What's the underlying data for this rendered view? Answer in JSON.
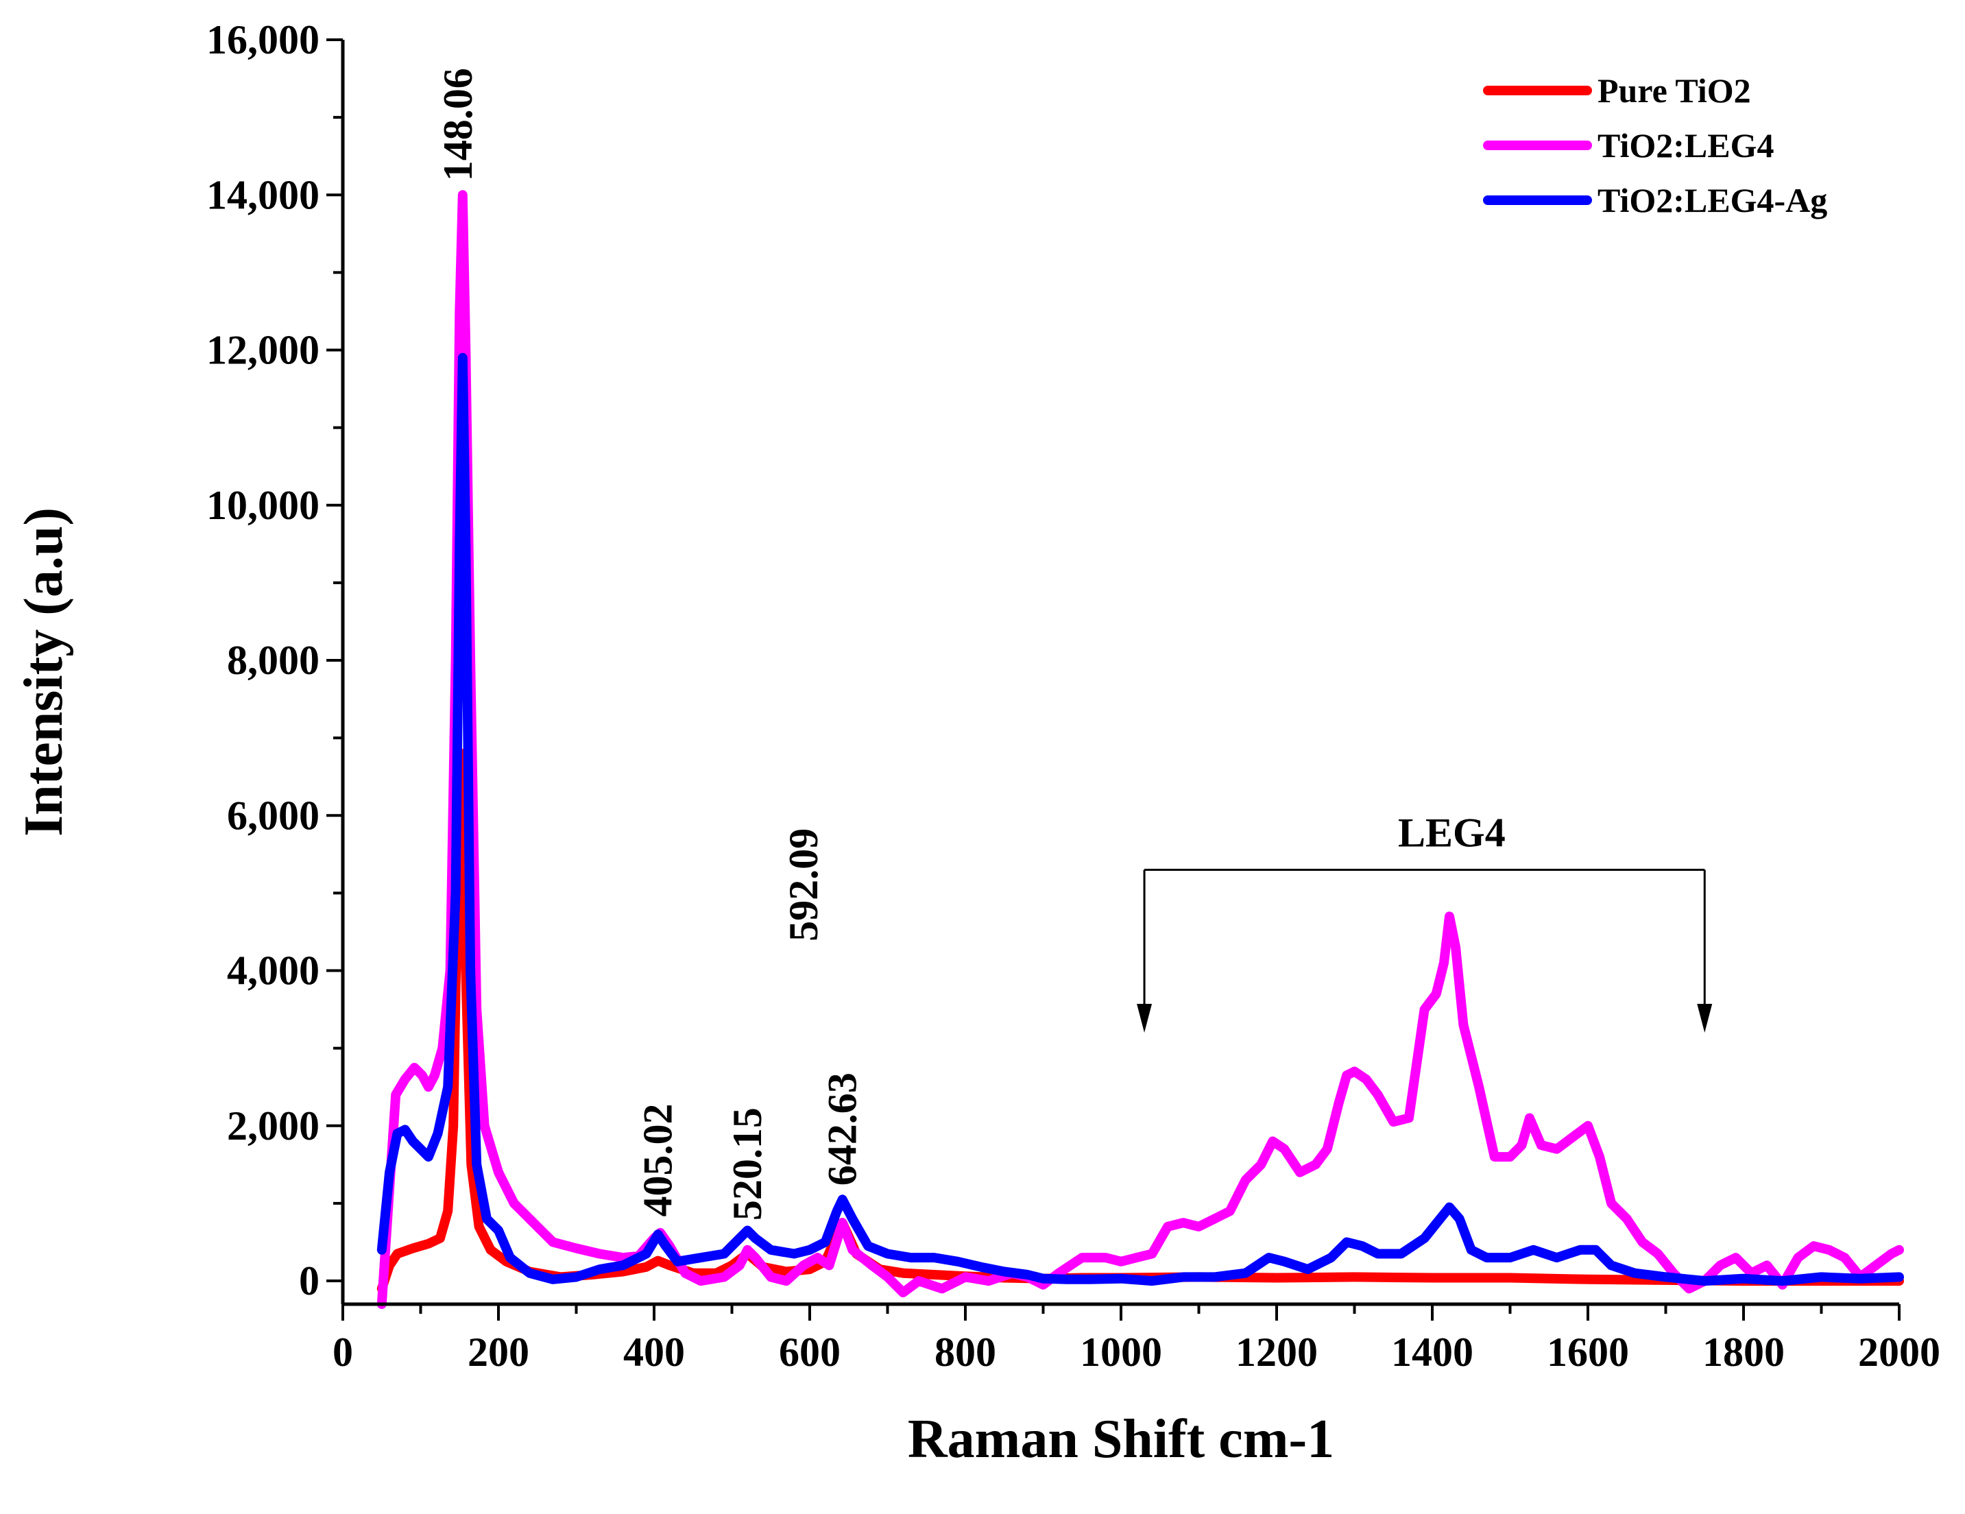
{
  "chart_data": {
    "type": "line",
    "title": "",
    "xlabel": "Raman Shift cm-1",
    "ylabel": "Intensity (a.u)",
    "xlim": [
      0,
      2000
    ],
    "ylim": [
      -300,
      16000
    ],
    "xticks": [
      0,
      200,
      400,
      600,
      800,
      1000,
      1200,
      1400,
      1600,
      1800,
      2000
    ],
    "yticks": [
      0,
      2000,
      4000,
      6000,
      8000,
      10000,
      12000,
      14000,
      16000
    ],
    "ytick_labels": [
      "0",
      "2,000",
      "4,000",
      "6,000",
      "8,000",
      "10,000",
      "12,000",
      "14,000",
      "16,000"
    ],
    "grid": false,
    "legend_position": "top-right",
    "series": [
      {
        "name": "Pure TiO2",
        "color": "#ff0000",
        "points": [
          [
            50,
            -100
          ],
          [
            60,
            200
          ],
          [
            70,
            350
          ],
          [
            90,
            420
          ],
          [
            110,
            480
          ],
          [
            125,
            550
          ],
          [
            135,
            900
          ],
          [
            142,
            2000
          ],
          [
            148,
            5500
          ],
          [
            152,
            6800
          ],
          [
            158,
            4000
          ],
          [
            165,
            1500
          ],
          [
            175,
            700
          ],
          [
            190,
            400
          ],
          [
            210,
            250
          ],
          [
            240,
            120
          ],
          [
            280,
            50
          ],
          [
            320,
            80
          ],
          [
            360,
            120
          ],
          [
            390,
            180
          ],
          [
            405,
            260
          ],
          [
            420,
            200
          ],
          [
            450,
            100
          ],
          [
            480,
            100
          ],
          [
            500,
            200
          ],
          [
            520,
            350
          ],
          [
            540,
            180
          ],
          [
            570,
            120
          ],
          [
            600,
            150
          ],
          [
            620,
            250
          ],
          [
            642,
            750
          ],
          [
            660,
            350
          ],
          [
            690,
            150
          ],
          [
            720,
            100
          ],
          [
            760,
            80
          ],
          [
            800,
            60
          ],
          [
            850,
            40
          ],
          [
            900,
            30
          ],
          [
            950,
            40
          ],
          [
            1000,
            40
          ],
          [
            1100,
            50
          ],
          [
            1200,
            40
          ],
          [
            1300,
            50
          ],
          [
            1400,
            40
          ],
          [
            1500,
            40
          ],
          [
            1600,
            20
          ],
          [
            1700,
            10
          ],
          [
            1800,
            0
          ],
          [
            1900,
            0
          ],
          [
            2000,
            0
          ]
        ]
      },
      {
        "name": "TiO2:LEG4",
        "color": "#ff00ff",
        "points": [
          [
            50,
            -300
          ],
          [
            60,
            1200
          ],
          [
            68,
            2400
          ],
          [
            80,
            2600
          ],
          [
            92,
            2750
          ],
          [
            102,
            2650
          ],
          [
            110,
            2500
          ],
          [
            118,
            2650
          ],
          [
            128,
            3000
          ],
          [
            138,
            4000
          ],
          [
            145,
            8000
          ],
          [
            150,
            12500
          ],
          [
            154,
            14000
          ],
          [
            158,
            12000
          ],
          [
            164,
            8000
          ],
          [
            172,
            3500
          ],
          [
            182,
            2000
          ],
          [
            200,
            1400
          ],
          [
            220,
            1000
          ],
          [
            250,
            700
          ],
          [
            270,
            500
          ],
          [
            300,
            420
          ],
          [
            330,
            350
          ],
          [
            360,
            300
          ],
          [
            380,
            320
          ],
          [
            400,
            550
          ],
          [
            408,
            620
          ],
          [
            420,
            450
          ],
          [
            440,
            100
          ],
          [
            460,
            0
          ],
          [
            490,
            50
          ],
          [
            510,
            200
          ],
          [
            520,
            400
          ],
          [
            530,
            300
          ],
          [
            550,
            50
          ],
          [
            570,
            0
          ],
          [
            592,
            200
          ],
          [
            610,
            300
          ],
          [
            625,
            200
          ],
          [
            642,
            750
          ],
          [
            655,
            400
          ],
          [
            680,
            200
          ],
          [
            700,
            50
          ],
          [
            720,
            -150
          ],
          [
            740,
            0
          ],
          [
            770,
            -100
          ],
          [
            800,
            50
          ],
          [
            830,
            0
          ],
          [
            860,
            100
          ],
          [
            880,
            50
          ],
          [
            900,
            -50
          ],
          [
            920,
            100
          ],
          [
            950,
            300
          ],
          [
            980,
            300
          ],
          [
            1000,
            250
          ],
          [
            1020,
            300
          ],
          [
            1040,
            350
          ],
          [
            1060,
            700
          ],
          [
            1080,
            750
          ],
          [
            1100,
            700
          ],
          [
            1120,
            800
          ],
          [
            1140,
            900
          ],
          [
            1160,
            1300
          ],
          [
            1180,
            1500
          ],
          [
            1195,
            1800
          ],
          [
            1210,
            1700
          ],
          [
            1230,
            1400
          ],
          [
            1250,
            1500
          ],
          [
            1265,
            1700
          ],
          [
            1280,
            2300
          ],
          [
            1290,
            2650
          ],
          [
            1300,
            2700
          ],
          [
            1315,
            2600
          ],
          [
            1330,
            2400
          ],
          [
            1350,
            2050
          ],
          [
            1370,
            2100
          ],
          [
            1390,
            3500
          ],
          [
            1405,
            3700
          ],
          [
            1415,
            4100
          ],
          [
            1422,
            4700
          ],
          [
            1430,
            4300
          ],
          [
            1440,
            3300
          ],
          [
            1460,
            2500
          ],
          [
            1480,
            1600
          ],
          [
            1500,
            1600
          ],
          [
            1515,
            1750
          ],
          [
            1525,
            2100
          ],
          [
            1540,
            1750
          ],
          [
            1560,
            1700
          ],
          [
            1580,
            1850
          ],
          [
            1600,
            2000
          ],
          [
            1615,
            1600
          ],
          [
            1630,
            1000
          ],
          [
            1650,
            800
          ],
          [
            1670,
            500
          ],
          [
            1690,
            350
          ],
          [
            1710,
            100
          ],
          [
            1730,
            -100
          ],
          [
            1750,
            0
          ],
          [
            1770,
            200
          ],
          [
            1790,
            300
          ],
          [
            1810,
            100
          ],
          [
            1830,
            200
          ],
          [
            1850,
            -50
          ],
          [
            1870,
            300
          ],
          [
            1890,
            450
          ],
          [
            1910,
            400
          ],
          [
            1930,
            300
          ],
          [
            1950,
            50
          ],
          [
            1970,
            200
          ],
          [
            1990,
            350
          ],
          [
            2000,
            400
          ]
        ]
      },
      {
        "name": "TiO2:LEG4-Ag",
        "color": "#0000ff",
        "points": [
          [
            50,
            400
          ],
          [
            60,
            1400
          ],
          [
            70,
            1900
          ],
          [
            80,
            1950
          ],
          [
            90,
            1800
          ],
          [
            100,
            1700
          ],
          [
            110,
            1600
          ],
          [
            122,
            1900
          ],
          [
            135,
            2500
          ],
          [
            145,
            5000
          ],
          [
            150,
            9500
          ],
          [
            154,
            11900
          ],
          [
            158,
            9500
          ],
          [
            164,
            4000
          ],
          [
            172,
            1500
          ],
          [
            185,
            800
          ],
          [
            200,
            650
          ],
          [
            215,
            300
          ],
          [
            240,
            100
          ],
          [
            270,
            20
          ],
          [
            300,
            50
          ],
          [
            330,
            150
          ],
          [
            360,
            200
          ],
          [
            390,
            350
          ],
          [
            405,
            600
          ],
          [
            415,
            450
          ],
          [
            430,
            250
          ],
          [
            460,
            300
          ],
          [
            490,
            350
          ],
          [
            510,
            550
          ],
          [
            520,
            650
          ],
          [
            530,
            550
          ],
          [
            550,
            400
          ],
          [
            580,
            350
          ],
          [
            600,
            400
          ],
          [
            620,
            500
          ],
          [
            635,
            900
          ],
          [
            642,
            1050
          ],
          [
            655,
            800
          ],
          [
            675,
            450
          ],
          [
            700,
            350
          ],
          [
            730,
            300
          ],
          [
            760,
            300
          ],
          [
            790,
            250
          ],
          [
            820,
            180
          ],
          [
            850,
            120
          ],
          [
            880,
            80
          ],
          [
            900,
            30
          ],
          [
            930,
            20
          ],
          [
            960,
            20
          ],
          [
            1000,
            30
          ],
          [
            1040,
            0
          ],
          [
            1080,
            50
          ],
          [
            1120,
            50
          ],
          [
            1160,
            100
          ],
          [
            1190,
            300
          ],
          [
            1210,
            250
          ],
          [
            1240,
            150
          ],
          [
            1270,
            300
          ],
          [
            1290,
            500
          ],
          [
            1310,
            450
          ],
          [
            1330,
            350
          ],
          [
            1360,
            350
          ],
          [
            1390,
            550
          ],
          [
            1410,
            800
          ],
          [
            1422,
            950
          ],
          [
            1435,
            800
          ],
          [
            1450,
            400
          ],
          [
            1470,
            300
          ],
          [
            1500,
            300
          ],
          [
            1530,
            400
          ],
          [
            1560,
            300
          ],
          [
            1590,
            400
          ],
          [
            1610,
            400
          ],
          [
            1630,
            200
          ],
          [
            1660,
            100
          ],
          [
            1700,
            50
          ],
          [
            1750,
            0
          ],
          [
            1800,
            30
          ],
          [
            1850,
            0
          ],
          [
            1900,
            50
          ],
          [
            1950,
            30
          ],
          [
            2000,
            50
          ]
        ]
      }
    ],
    "annotations": [
      {
        "text": "148.06",
        "x": 148,
        "y": 14000,
        "rotation": -90
      },
      {
        "text": "405.02",
        "x": 405,
        "y": 650,
        "rotation": -90
      },
      {
        "text": "520.15",
        "x": 520,
        "y": 600,
        "rotation": -90
      },
      {
        "text": "592.09",
        "x": 592,
        "y": 4200,
        "rotation": -90
      },
      {
        "text": "642.63",
        "x": 642,
        "y": 1050,
        "rotation": -90
      },
      {
        "text": "LEG4",
        "x": 1425,
        "y": 5600,
        "rotation": 0
      }
    ],
    "bracket": {
      "label": "LEG4",
      "x_start": 1030,
      "x_end": 1750,
      "y_top": 5300,
      "y_bottom": 3200
    }
  }
}
